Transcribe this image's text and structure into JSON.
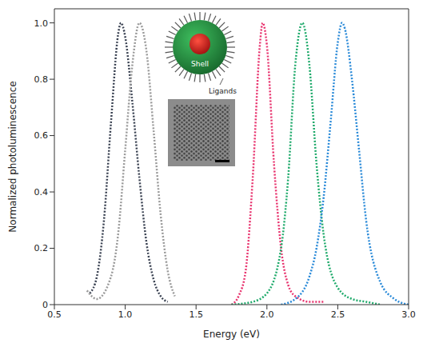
{
  "chart_data": {
    "type": "line",
    "xlabel": "Energy (eV)",
    "ylabel": "Normalized photoluminescence",
    "xlim": [
      0.5,
      3.0
    ],
    "xticks": [
      0.5,
      {
        "value": 1,
        "label": "1.0"
      },
      1.5,
      {
        "value": 2,
        "label": "2.0"
      },
      2.5,
      {
        "value": 3,
        "label": "3.0"
      }
    ],
    "ylim": [
      0,
      1.05
    ],
    "yticks": [
      0,
      0.2,
      0.4,
      0.6,
      0.8,
      {
        "value": 1,
        "label": "1.0"
      }
    ],
    "grid": false,
    "annotations": [
      "Shell",
      "Ligands"
    ],
    "series": [
      {
        "color": "#3a4252",
        "line_style": "dotted",
        "x": [
          0.75,
          0.8,
          0.85,
          0.9,
          0.95,
          0.97,
          1.0,
          1.05,
          1.1,
          1.15,
          1.2,
          1.25,
          1.3
        ],
        "values": [
          0.04,
          0.1,
          0.3,
          0.65,
          0.96,
          1.0,
          0.95,
          0.72,
          0.45,
          0.22,
          0.09,
          0.03,
          0.01
        ]
      },
      {
        "color": "#9a9a9a",
        "line_style": "dotted",
        "x": [
          0.73,
          0.8,
          0.9,
          0.95,
          1.0,
          1.05,
          1.1,
          1.15,
          1.2,
          1.25,
          1.3,
          1.35
        ],
        "values": [
          0.05,
          0.02,
          0.1,
          0.25,
          0.55,
          0.85,
          1.0,
          0.9,
          0.62,
          0.32,
          0.12,
          0.03
        ]
      },
      {
        "color": "#e8336e",
        "line_style": "dotted",
        "x": [
          1.75,
          1.8,
          1.85,
          1.9,
          1.95,
          1.97,
          2.0,
          2.05,
          2.1,
          2.15,
          2.2,
          2.3,
          2.4
        ],
        "values": [
          0.0,
          0.03,
          0.12,
          0.45,
          0.92,
          1.0,
          0.92,
          0.5,
          0.2,
          0.07,
          0.03,
          0.01,
          0.01
        ]
      },
      {
        "color": "#1faa6b",
        "line_style": "dotted",
        "x": [
          1.75,
          1.9,
          2.0,
          2.1,
          2.15,
          2.2,
          2.25,
          2.3,
          2.35,
          2.4,
          2.5,
          2.6,
          2.7,
          2.8
        ],
        "values": [
          0.0,
          0.01,
          0.04,
          0.2,
          0.45,
          0.85,
          1.0,
          0.85,
          0.5,
          0.25,
          0.06,
          0.02,
          0.01,
          0.0
        ]
      },
      {
        "color": "#2a8ad8",
        "line_style": "dotted",
        "x": [
          2.1,
          2.2,
          2.3,
          2.35,
          2.4,
          2.45,
          2.5,
          2.53,
          2.55,
          2.6,
          2.65,
          2.7,
          2.8,
          2.9,
          3.0
        ],
        "values": [
          0.0,
          0.02,
          0.1,
          0.2,
          0.38,
          0.65,
          0.93,
          1.0,
          0.98,
          0.8,
          0.55,
          0.3,
          0.08,
          0.02,
          0.0
        ]
      }
    ]
  }
}
